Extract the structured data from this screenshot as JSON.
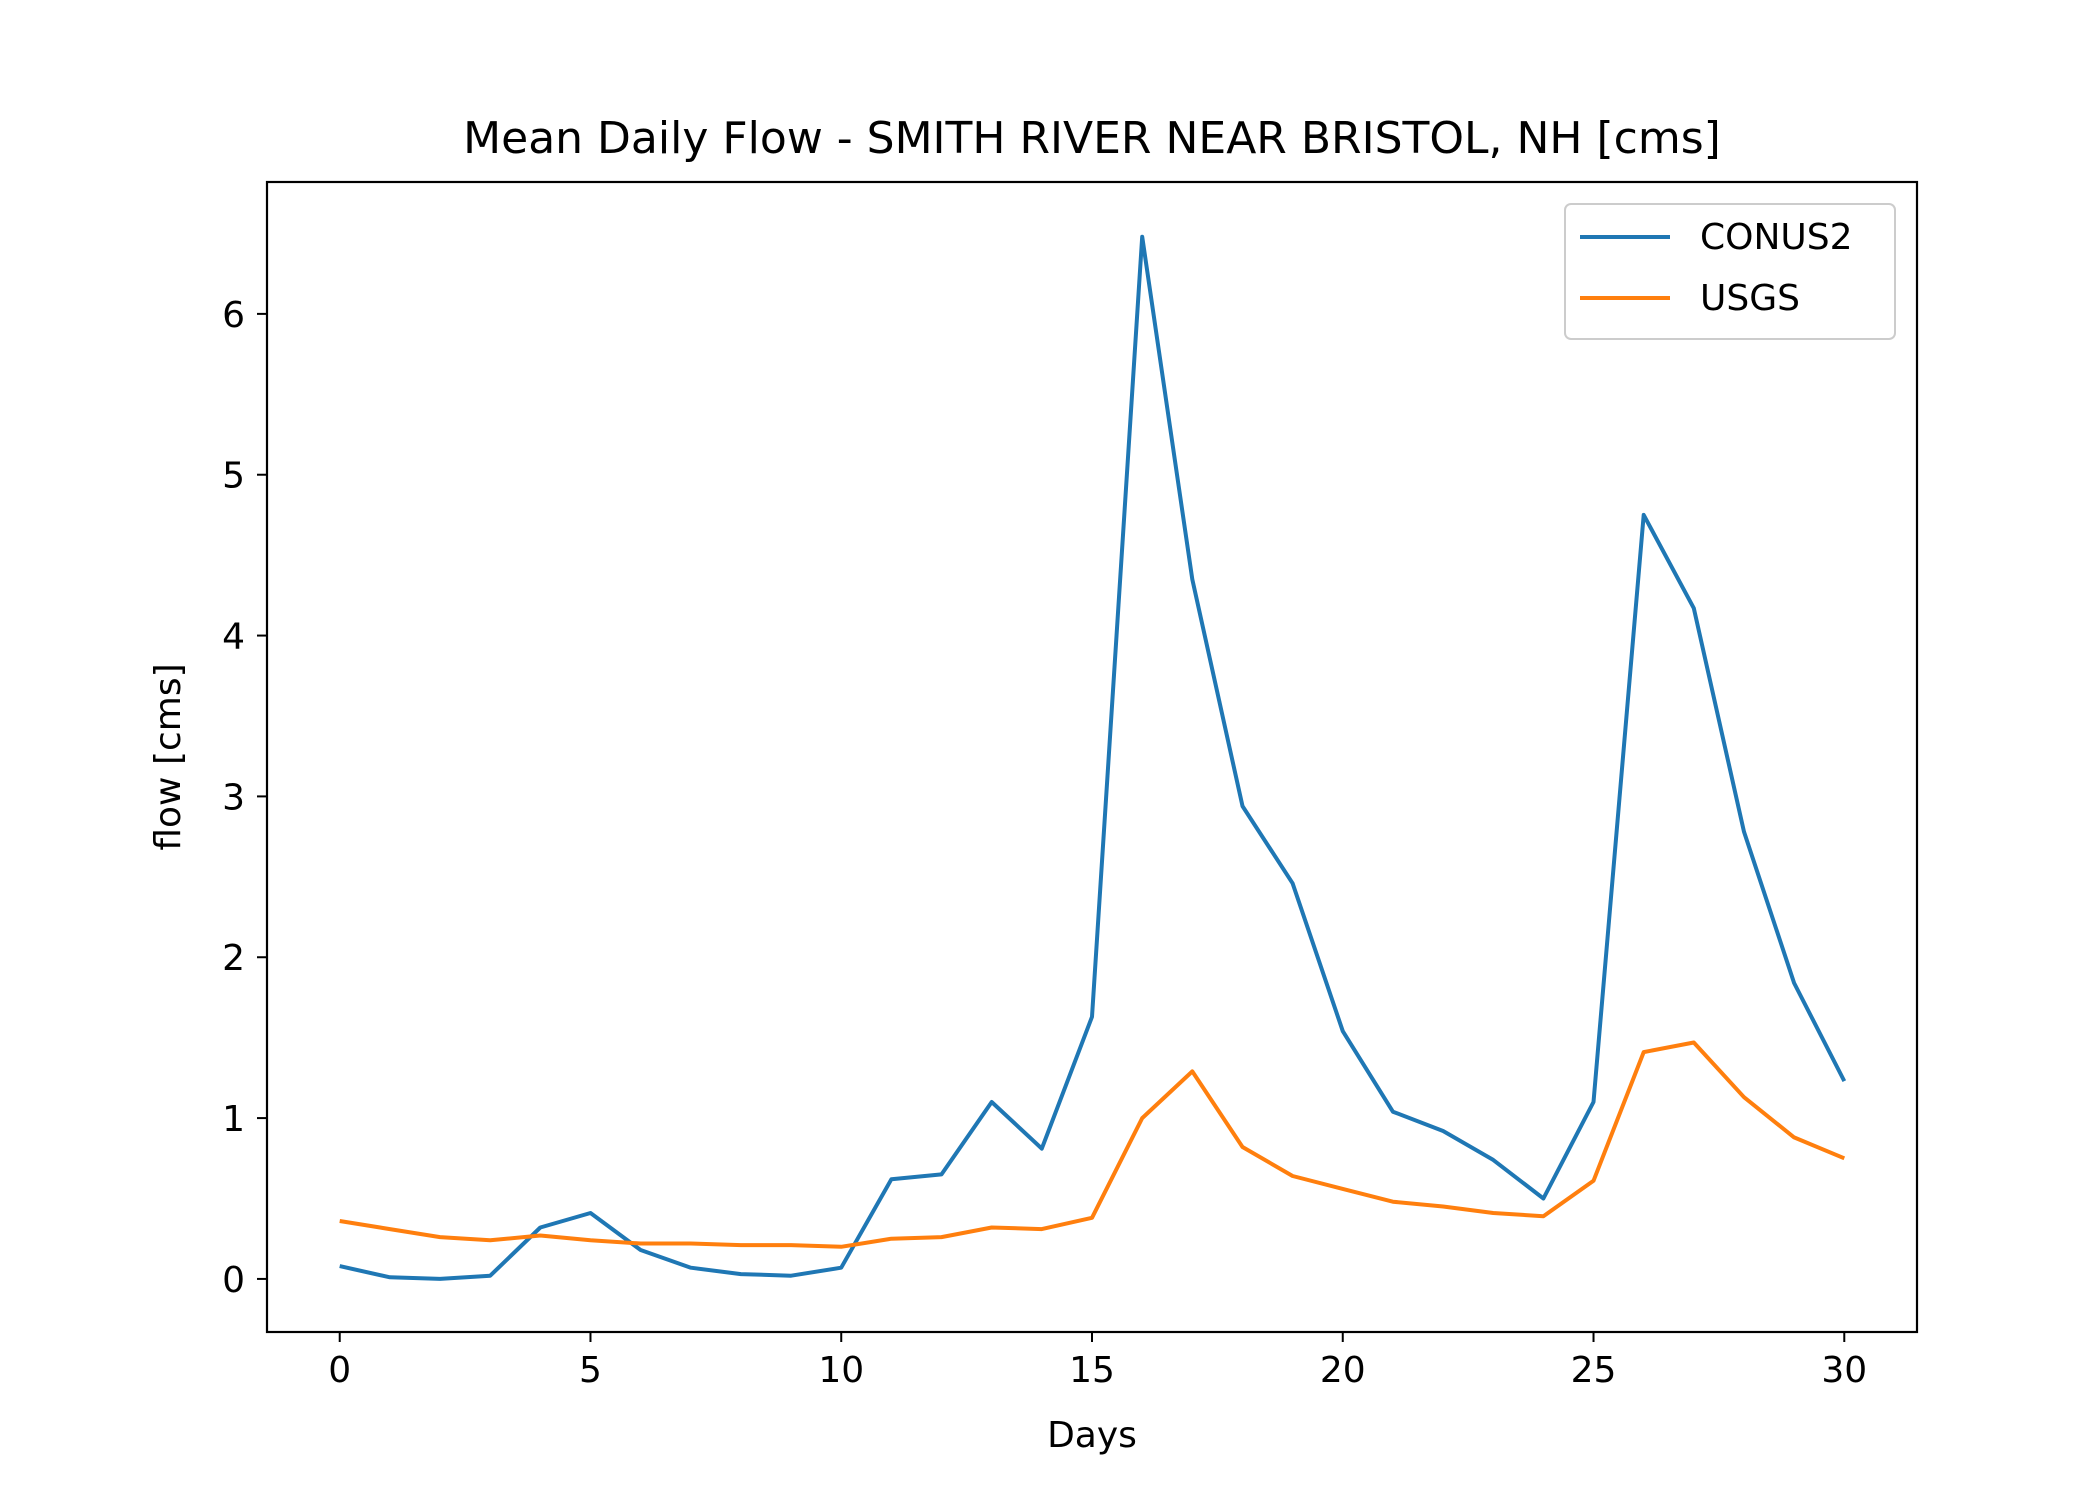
{
  "chart_data": {
    "type": "line",
    "title": "Mean Daily Flow - SMITH RIVER NEAR BRISTOL, NH [cms]",
    "xlabel": "Days",
    "ylabel": "flow [cms]",
    "xlim": [
      -1.45,
      31.45
    ],
    "ylim": [
      -0.33,
      6.82
    ],
    "xticks": [
      0,
      5,
      10,
      15,
      20,
      25,
      30
    ],
    "yticks": [
      0,
      1,
      2,
      3,
      4,
      5,
      6
    ],
    "grid": false,
    "legend_position": "top-right",
    "x": [
      0,
      1,
      2,
      3,
      4,
      5,
      6,
      7,
      8,
      9,
      10,
      11,
      12,
      13,
      14,
      15,
      16,
      17,
      18,
      19,
      20,
      21,
      22,
      23,
      24,
      25,
      26,
      27,
      28,
      29,
      30
    ],
    "series": [
      {
        "name": "CONUS2",
        "color": "#1f77b4",
        "values": [
          0.08,
          0.01,
          0.0,
          0.02,
          0.32,
          0.41,
          0.18,
          0.07,
          0.03,
          0.02,
          0.07,
          0.62,
          0.65,
          1.1,
          0.81,
          1.63,
          6.48,
          4.35,
          2.94,
          2.46,
          1.54,
          1.04,
          0.92,
          0.74,
          0.5,
          1.1,
          4.75,
          4.17,
          2.78,
          1.84,
          1.23
        ]
      },
      {
        "name": "USGS",
        "color": "#ff7f0e",
        "values": [
          0.36,
          0.31,
          0.26,
          0.24,
          0.27,
          0.24,
          0.22,
          0.22,
          0.21,
          0.21,
          0.2,
          0.25,
          0.26,
          0.32,
          0.31,
          0.38,
          1.0,
          1.29,
          0.82,
          0.64,
          0.56,
          0.48,
          0.45,
          0.41,
          0.39,
          0.61,
          1.41,
          1.47,
          1.13,
          0.88,
          0.75
        ]
      }
    ]
  }
}
